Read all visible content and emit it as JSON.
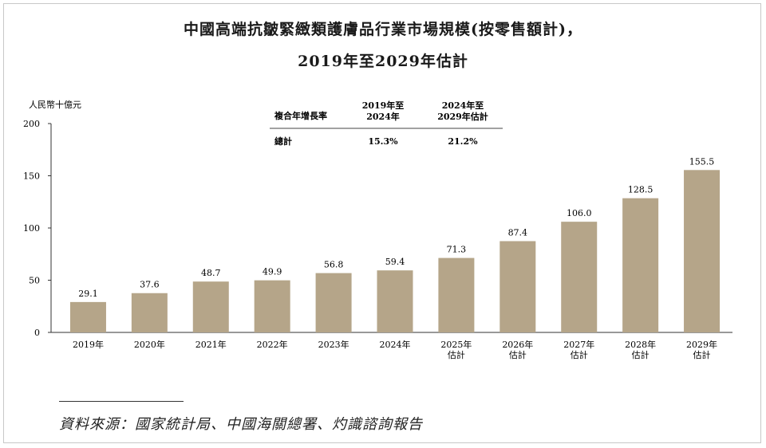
{
  "title_line1": "中國高端抗皺緊緻類護膚品行業市場規模(按零售額計)，",
  "title_line2": "2019年至2029年估計",
  "source_text": "資料來源：國家統計局、中國海關總署、灼識諮詢報告",
  "chart_data": {
    "type": "bar",
    "ylabel": "人民幣十億元",
    "ylim": [
      0,
      200
    ],
    "yticks": [
      0,
      50,
      100,
      150,
      200
    ],
    "categories": [
      [
        "2019年"
      ],
      [
        "2020年"
      ],
      [
        "2021年"
      ],
      [
        "2022年"
      ],
      [
        "2023年"
      ],
      [
        "2024年"
      ],
      [
        "2025年",
        "估計"
      ],
      [
        "2026年",
        "估計"
      ],
      [
        "2027年",
        "估計"
      ],
      [
        "2028年",
        "估計"
      ],
      [
        "2029年",
        "估計"
      ]
    ],
    "values": [
      29.1,
      37.6,
      48.7,
      49.9,
      56.8,
      59.4,
      71.3,
      87.4,
      106.0,
      128.5,
      155.5
    ],
    "value_labels": [
      "29.1",
      "37.6",
      "48.7",
      "49.9",
      "56.8",
      "59.4",
      "71.3",
      "87.4",
      "106.0",
      "128.5",
      "155.5"
    ],
    "bar_color": "#b5a589",
    "grid": false
  },
  "cagr_table": {
    "header_label": "複合年增長率",
    "col1_header": [
      "2019年至",
      "2024年"
    ],
    "col2_header": [
      "2024年至",
      "2029年估計"
    ],
    "row_label": "總計",
    "col1_value": "15.3%",
    "col2_value": "21.2%"
  }
}
